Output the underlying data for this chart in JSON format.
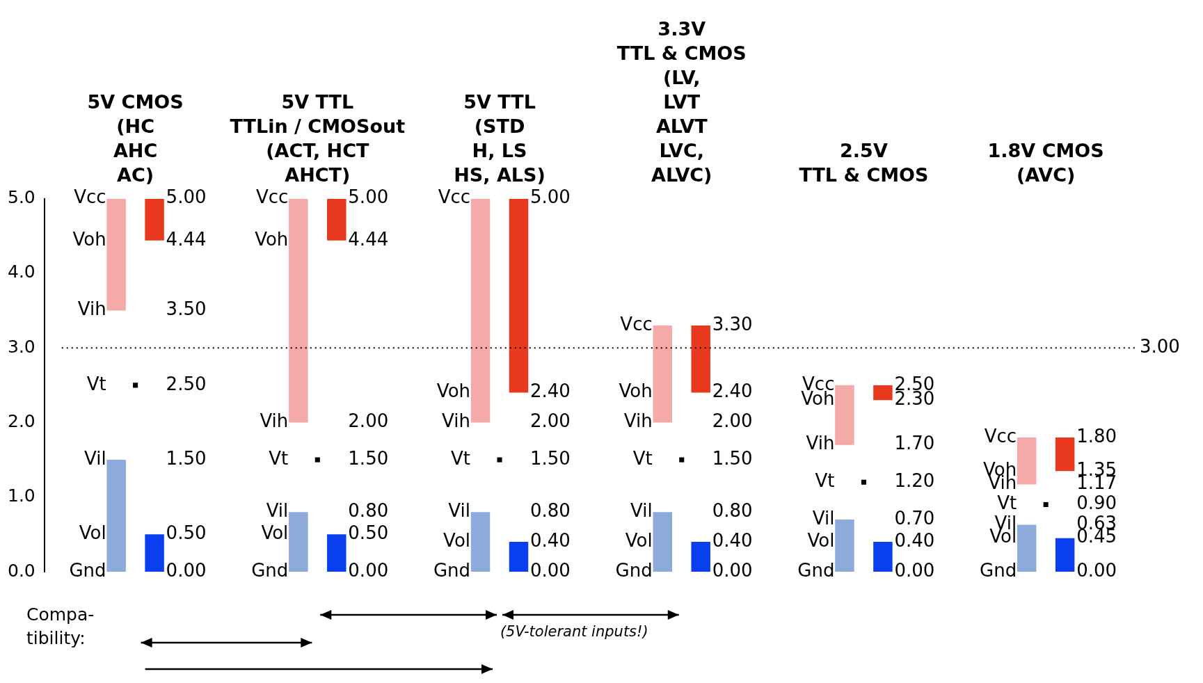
{
  "chart_data": {
    "type": "bar",
    "categories": [
      "5V CMOS\n(HC\nAHC\nAC)",
      "5V TTL\nTTLin / CMOSout\n(ACT, HCT\nAHCT)",
      "5V TTL\n(STD\nH, LS\nHS, ALS)",
      "3.3V\nTTL & CMOS\n(LV,\nLVT\nALVT\nLVC,\nALVC)",
      "2.5V\nTTL & CMOS",
      "1.8V CMOS\n(AVC)"
    ],
    "series": [
      {
        "color": "#f4aaa8",
        "base": [
          3.5,
          2,
          2,
          2,
          1.7,
          1.17
        ],
        "values": [
          1.5,
          3,
          3,
          1.3,
          0.8,
          0.63
        ]
      },
      {
        "color": "#e8391f",
        "base": [
          4.44,
          4.44,
          2.4,
          2.4,
          2.3,
          1.35
        ],
        "values": [
          0.56,
          0.56,
          2.6,
          0.9,
          0.2,
          0.45
        ]
      },
      {
        "color": "#8eaadb",
        "base": [
          0,
          0,
          0,
          0,
          0,
          0
        ],
        "values": [
          1.5,
          0.8,
          0.8,
          0.8,
          0.7,
          0.63
        ]
      },
      {
        "color": "#0a3ff0",
        "base": [
          0,
          0,
          0,
          0,
          0,
          0
        ],
        "values": [
          0.5,
          0.5,
          0.4,
          0.4,
          0.4,
          0.45
        ]
      },
      {
        "type": "scatter",
        "color": "#000000",
        "values": [
          2.5,
          1.5,
          1.5,
          1.5,
          1.2,
          0.9
        ]
      }
    ],
    "ylim": [
      0,
      5
    ],
    "yticks": [
      {
        "value": 0,
        "label": "0.0"
      },
      {
        "value": 1,
        "label": "1.0"
      },
      {
        "value": 2,
        "label": "2.0"
      },
      {
        "value": 3,
        "label": "3.0"
      },
      {
        "value": 4,
        "label": "4.0"
      },
      {
        "value": 5,
        "label": "5.0"
      }
    ],
    "grid": false,
    "ref_lines": [
      {
        "axis": "y",
        "value": 3,
        "label": "3.00",
        "line_style": "dotted",
        "color": "#000000"
      }
    ],
    "annotations": [
      "Compa-\ntibility:",
      "(5V-tolerant inputs!)",
      "Vcc",
      "5.00",
      "Voh",
      "4.44",
      "Vih",
      "3.50",
      "Vt",
      "2.50",
      "Vil",
      "1.50",
      "Vol",
      "0.50",
      "Gnd",
      "0.00",
      "Vcc",
      "5.00",
      "Voh",
      "4.44",
      "Vih",
      "2.00",
      "Vt",
      "1.50",
      "Vil",
      "0.80",
      "Vol",
      "0.50",
      "Gnd",
      "0.00",
      "Vcc",
      "5.00",
      "Voh",
      "2.40",
      "Vih",
      "2.00",
      "Vt",
      "1.50",
      "Vil",
      "0.80",
      "Vol",
      "0.40",
      "Gnd",
      "0.00",
      "Vcc",
      "3.30",
      "Voh",
      "2.40",
      "Vih",
      "2.00",
      "Vt",
      "1.50",
      "Vil",
      "0.80",
      "Vol",
      "0.40",
      "Gnd",
      "0.00",
      "Vcc",
      "2.50",
      "Voh",
      "2.30",
      "Vih",
      "1.70",
      "Vt",
      "1.20",
      "Vil",
      "0.70",
      "Vol",
      "0.40",
      "Gnd",
      "0.00",
      "Vcc",
      "1.80",
      "Voh",
      "1.35",
      "Vih",
      "1.17",
      "Vt",
      "0.90",
      "Vil",
      "0.63",
      "Vol",
      "0.45",
      "Gnd",
      "0.00"
    ]
  }
}
